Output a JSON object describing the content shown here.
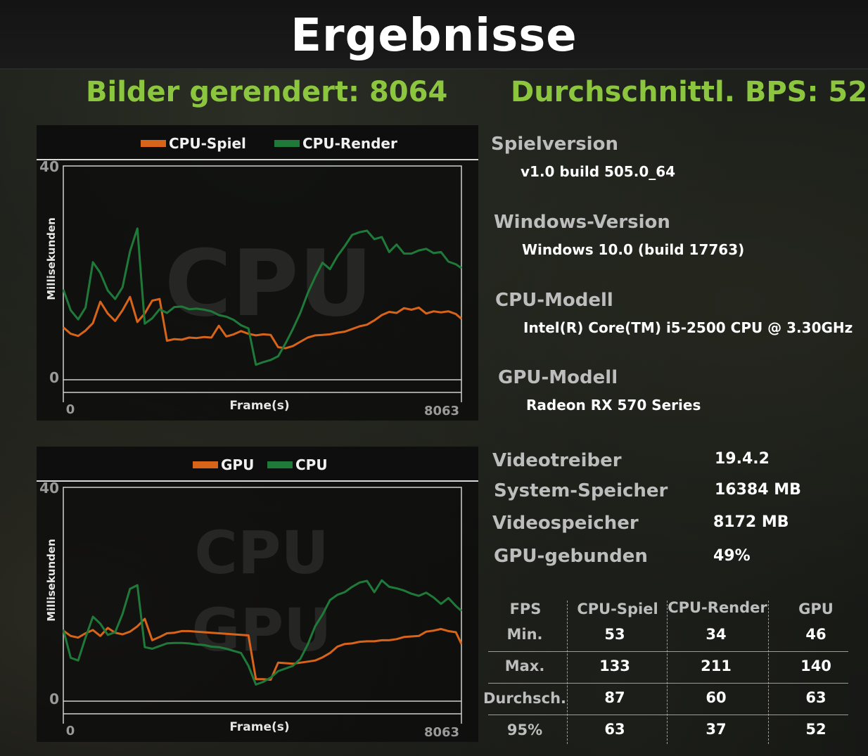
{
  "title": "Ergebnisse",
  "headlines": {
    "frames_rendered": "Bilder gerendert: 8064",
    "avg_fps": "Durchschnittl. BPS: 52"
  },
  "colors": {
    "orange": "#d8641a",
    "green": "#1f7a3a",
    "accent": "#8cc63f"
  },
  "chart1": {
    "legend": [
      "CPU-Spiel",
      "CPU-Render"
    ],
    "watermark": "CPU",
    "ylabel": "Millisekunden",
    "xlabel": "Frame(s)",
    "y_ticks": [
      "40",
      "0"
    ],
    "x_ticks": [
      "0",
      "8063"
    ]
  },
  "chart2": {
    "legend": [
      "GPU",
      "CPU"
    ],
    "watermark_top": "CPU",
    "watermark_bottom": "GPU",
    "ylabel": "Millisekunden",
    "xlabel": "Frame(s)",
    "y_ticks": [
      "40",
      "0"
    ],
    "x_ticks": [
      "0",
      "8063"
    ]
  },
  "chart_data": [
    {
      "type": "line",
      "xlabel": "Frame(s)",
      "ylabel": "Millisekunden",
      "xlim": [
        0,
        8063
      ],
      "ylim": [
        0,
        40
      ],
      "series": [
        {
          "name": "CPU-Spiel",
          "color": "#d8641a",
          "x": [
            0,
            150,
            300,
            450,
            600,
            750,
            900,
            1050,
            1200,
            1350,
            1500,
            1650,
            1800,
            1950,
            2100,
            2250,
            2400,
            2550,
            2700,
            2850,
            3000,
            3150,
            3300,
            3450,
            3600,
            3750,
            3900,
            4050,
            4200,
            4350,
            4500,
            4650,
            4800,
            4950,
            5100,
            5250,
            5400,
            5550,
            5700,
            5850,
            6000,
            6150,
            6300,
            6450,
            6600,
            6750,
            6900,
            7050,
            7200,
            7350,
            7500,
            7650,
            7800,
            7950,
            8063
          ],
          "values": [
            9.8,
            8.6,
            8.2,
            9.2,
            10.6,
            14.6,
            12.4,
            11,
            13,
            15.5,
            10.8,
            12.4,
            14.8,
            15.1,
            7.3,
            7.6,
            7.5,
            7.9,
            7.8,
            8,
            7.9,
            10.1,
            8.1,
            8.5,
            9.1,
            8.6,
            8.3,
            8.5,
            8.4,
            6.1,
            5.9,
            6.3,
            7.1,
            7.9,
            8.3,
            8.4,
            8.5,
            8.8,
            9,
            9.5,
            10,
            10.3,
            11.1,
            12.1,
            12.7,
            12.5,
            13.4,
            13.1,
            13.5,
            12.4,
            12.8,
            12.6,
            12.8,
            12.3,
            11.4
          ]
        },
        {
          "name": "CPU-Render",
          "color": "#1f7a3a",
          "x": [
            0,
            150,
            300,
            450,
            600,
            750,
            900,
            1050,
            1200,
            1350,
            1500,
            1650,
            1800,
            1950,
            2100,
            2250,
            2400,
            2550,
            2700,
            2850,
            3000,
            3150,
            3300,
            3450,
            3600,
            3750,
            3900,
            4050,
            4200,
            4350,
            4500,
            4650,
            4800,
            4950,
            5100,
            5250,
            5400,
            5550,
            5700,
            5850,
            6000,
            6150,
            6300,
            6450,
            6600,
            6750,
            6900,
            7050,
            7200,
            7350,
            7500,
            7650,
            7800,
            7950,
            8063
          ],
          "values": [
            16.9,
            13,
            11.3,
            13.5,
            22,
            20,
            16.7,
            15.1,
            17.3,
            24,
            28.3,
            10.5,
            11.5,
            13.2,
            12.5,
            13.6,
            13.7,
            13.2,
            13.3,
            13.1,
            12.8,
            12.1,
            11.8,
            11.2,
            10.2,
            9.6,
            2.8,
            3.3,
            3.7,
            4.4,
            6.8,
            9.5,
            12.5,
            16.2,
            19.2,
            21.9,
            20.7,
            23.1,
            25,
            27.1,
            27.6,
            27.9,
            26.3,
            26.7,
            23.9,
            25.3,
            23.6,
            23.6,
            24.2,
            24.5,
            23.7,
            23.9,
            22.1,
            21.6,
            20.9
          ]
        }
      ]
    },
    {
      "type": "line",
      "xlabel": "Frame(s)",
      "ylabel": "Millisekunden",
      "xlim": [
        0,
        8063
      ],
      "ylim": [
        0,
        40
      ],
      "series": [
        {
          "name": "GPU",
          "color": "#d8641a",
          "x": [
            0,
            150,
            300,
            450,
            600,
            750,
            900,
            1050,
            1200,
            1350,
            1500,
            1650,
            1800,
            1950,
            2100,
            2250,
            2400,
            2550,
            2700,
            2850,
            3000,
            3150,
            3300,
            3450,
            3600,
            3750,
            3900,
            4050,
            4200,
            4350,
            4500,
            4650,
            4800,
            4950,
            5100,
            5250,
            5400,
            5550,
            5700,
            5850,
            6000,
            6150,
            6300,
            6450,
            6600,
            6750,
            6900,
            7050,
            7200,
            7350,
            7500,
            7650,
            7800,
            7950,
            8063
          ],
          "values": [
            13.2,
            12.2,
            11.9,
            12.7,
            13.3,
            12.2,
            13.7,
            12.8,
            12.5,
            13,
            14,
            15.4,
            11.4,
            12,
            12.7,
            12.8,
            13.1,
            13.1,
            13,
            12.9,
            12.8,
            12.7,
            12.6,
            12.5,
            12.4,
            12.3,
            4.1,
            4.1,
            4,
            7.2,
            7.1,
            7,
            7.2,
            7.4,
            7.6,
            8.2,
            9,
            10.2,
            10.7,
            10.8,
            11.1,
            11.2,
            11.2,
            11.4,
            11.4,
            11.6,
            12,
            12.1,
            12.2,
            13,
            13.2,
            13.5,
            13.1,
            12.9,
            10.7
          ]
        },
        {
          "name": "CPU",
          "color": "#1f7a3a",
          "x": [
            0,
            150,
            300,
            450,
            600,
            750,
            900,
            1050,
            1200,
            1350,
            1500,
            1650,
            1800,
            1950,
            2100,
            2250,
            2400,
            2550,
            2700,
            2850,
            3000,
            3150,
            3300,
            3450,
            3600,
            3750,
            3900,
            4050,
            4200,
            4350,
            4500,
            4650,
            4800,
            4950,
            5100,
            5250,
            5400,
            5550,
            5700,
            5850,
            6000,
            6150,
            6300,
            6450,
            6600,
            6750,
            6900,
            7050,
            7200,
            7350,
            7500,
            7650,
            7800,
            7950,
            8063
          ],
          "values": [
            13.4,
            8.1,
            7.6,
            11.9,
            15.8,
            14.5,
            12.4,
            12.9,
            16.3,
            21,
            21.7,
            10.1,
            9.8,
            10.3,
            10.8,
            10.9,
            10.9,
            10.8,
            10.6,
            10.5,
            10.2,
            10.1,
            9.8,
            9.4,
            9,
            6.6,
            3.1,
            3.6,
            4.4,
            5.6,
            6.1,
            6.6,
            7.9,
            10.6,
            14,
            16.2,
            18.9,
            19.9,
            20.4,
            21.4,
            22.2,
            22.5,
            20.4,
            22.6,
            21.4,
            21.1,
            20.7,
            20.1,
            19.7,
            20.3,
            19.4,
            18.2,
            19.3,
            17.8,
            16.9
          ]
        }
      ]
    }
  ],
  "info": {
    "game_version_label": "Spielversion",
    "game_version_value": "v1.0 build 505.0_64",
    "windows_label": "Windows-Version",
    "windows_value": "Windows 10.0 (build 17763)",
    "cpu_label": "CPU-Modell",
    "cpu_value": "Intel(R) Core(TM) i5-2500 CPU @ 3.30GHz",
    "gpu_label": "GPU-Modell",
    "gpu_value": "Radeon RX 570 Series"
  },
  "specs": [
    {
      "label": "Videotreiber",
      "value": "19.4.2"
    },
    {
      "label": "System-Speicher",
      "value": "16384 MB"
    },
    {
      "label": "Videospeicher",
      "value": "8172 MB"
    },
    {
      "label": "GPU-gebunden",
      "value": "49%"
    }
  ],
  "fps_table": {
    "headers": [
      "FPS",
      "CPU-Spiel",
      "CPU-Render",
      "GPU"
    ],
    "rows": [
      {
        "label": "Min.",
        "values": [
          "53",
          "34",
          "46"
        ]
      },
      {
        "label": "Max.",
        "values": [
          "133",
          "211",
          "140"
        ]
      },
      {
        "label": "Durchsch.",
        "values": [
          "87",
          "60",
          "63"
        ]
      },
      {
        "label": "95%",
        "values": [
          "63",
          "37",
          "52"
        ]
      }
    ]
  }
}
